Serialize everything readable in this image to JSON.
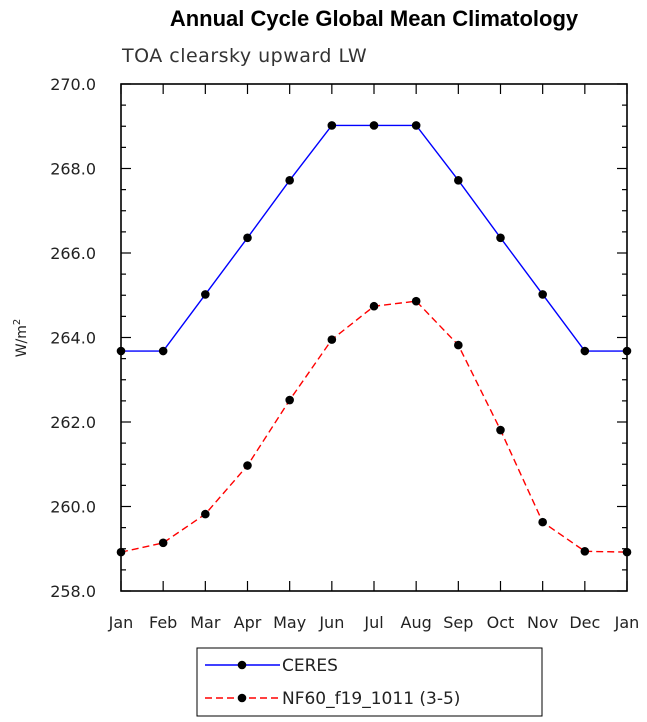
{
  "chart_data": {
    "type": "line",
    "title": "Annual Cycle Global Mean Climatology",
    "subtitle": "TOA clearsky upward LW",
    "xlabel": "",
    "ylabel_base": "W/m",
    "ylabel_sup": "2",
    "categories": [
      "Jan",
      "Feb",
      "Mar",
      "Apr",
      "May",
      "Jun",
      "Jul",
      "Aug",
      "Sep",
      "Oct",
      "Nov",
      "Dec",
      "Jan"
    ],
    "yticks": [
      "258.0",
      "260.0",
      "262.0",
      "264.0",
      "266.0",
      "268.0",
      "270.0"
    ],
    "ylim": [
      258,
      270
    ],
    "series": [
      {
        "name": "CERES",
        "color": "#0000ff",
        "dash": "solid",
        "marker": "filled-circle",
        "values": [
          263.68,
          263.68,
          265.02,
          266.36,
          267.72,
          269.02,
          269.02,
          269.02,
          267.72,
          266.36,
          265.02,
          263.68,
          263.68
        ]
      },
      {
        "name": "NF60_f19_1011 (3-5)",
        "color": "#ff0000",
        "dash": "dashed",
        "marker": "filled-circle",
        "values": [
          258.92,
          259.14,
          259.82,
          260.97,
          262.52,
          263.95,
          264.74,
          264.86,
          263.82,
          261.81,
          259.63,
          258.94,
          258.92
        ]
      }
    ],
    "legend_position": "bottom-left"
  }
}
